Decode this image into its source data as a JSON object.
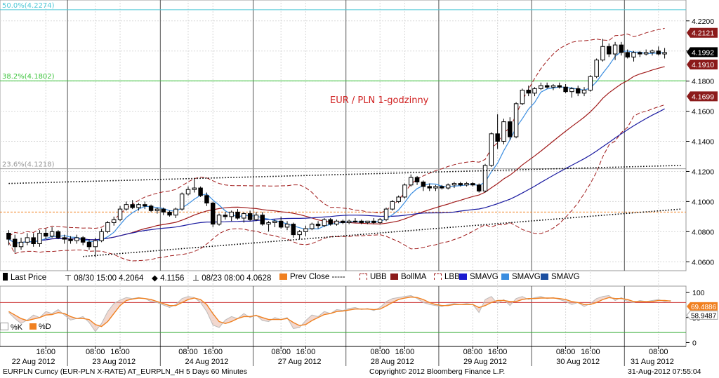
{
  "chart_data": {
    "type": "candlestick",
    "annotation_title": "EUR / PLN 1-godzinny",
    "ylim": [
      4.055,
      4.232
    ],
    "y_ticks": [
      "4.2200",
      "4.2000",
      "4.1800",
      "4.1600",
      "4.1400",
      "4.1200",
      "4.1000",
      "4.0800",
      "4.0600"
    ],
    "price_tags": [
      {
        "label": "4.2121",
        "value": 4.2121,
        "color": "#8b1a1a"
      },
      {
        "label": "4.1992",
        "value": 4.1992,
        "color": "#000000"
      },
      {
        "label": "4.1910",
        "value": 4.191,
        "color": "#8b1a1a"
      },
      {
        "label": "4.1699",
        "value": 4.1699,
        "color": "#8b1a1a"
      }
    ],
    "fib_levels": [
      {
        "label": "50.0%(4.2274)",
        "value": 4.2274,
        "color": "#4ec7d6"
      },
      {
        "label": "38.2%(4.1802)",
        "value": 4.1802,
        "color": "#3cc43c"
      },
      {
        "label": "23.6%(4.1218)",
        "value": 4.1218,
        "color": "#999999"
      }
    ],
    "prev_close": 4.093,
    "trend_lines": [
      {
        "from": [
          0,
          4.112
        ],
        "to": [
          150,
          4.124
        ]
      },
      {
        "from": [
          12,
          4.0635
        ],
        "to": [
          150,
          4.095
        ]
      }
    ],
    "candles": [
      [
        4.079,
        4.081,
        4.071,
        4.075
      ],
      [
        4.075,
        4.078,
        4.066,
        4.07
      ],
      [
        4.07,
        4.076,
        4.068,
        4.073
      ],
      [
        4.073,
        4.079,
        4.071,
        4.076
      ],
      [
        4.076,
        4.079,
        4.07,
        4.072
      ],
      [
        4.072,
        4.081,
        4.07,
        4.079
      ],
      [
        4.079,
        4.082,
        4.075,
        4.077
      ],
      [
        4.077,
        4.083,
        4.076,
        4.08
      ],
      [
        4.08,
        4.081,
        4.075,
        4.076
      ],
      [
        4.076,
        4.078,
        4.072,
        4.075
      ],
      [
        4.075,
        4.077,
        4.072,
        4.074
      ],
      [
        4.074,
        4.078,
        4.072,
        4.076
      ],
      [
        4.076,
        4.077,
        4.071,
        4.073
      ],
      [
        4.073,
        4.075,
        4.068,
        4.07
      ],
      [
        4.07,
        4.076,
        4.063,
        4.074
      ],
      [
        4.074,
        4.082,
        4.073,
        4.08
      ],
      [
        4.08,
        4.087,
        4.079,
        4.086
      ],
      [
        4.086,
        4.09,
        4.084,
        4.088
      ],
      [
        4.088,
        4.097,
        4.087,
        4.095
      ],
      [
        4.095,
        4.1,
        4.094,
        4.098
      ],
      [
        4.098,
        4.101,
        4.095,
        4.096
      ],
      [
        4.096,
        4.099,
        4.094,
        4.098
      ],
      [
        4.098,
        4.1,
        4.095,
        4.097
      ],
      [
        4.097,
        4.098,
        4.093,
        4.094
      ],
      [
        4.094,
        4.096,
        4.092,
        4.095
      ],
      [
        4.095,
        4.096,
        4.091,
        4.093
      ],
      [
        4.093,
        4.094,
        4.09,
        4.091
      ],
      [
        4.091,
        4.096,
        4.089,
        4.095
      ],
      [
        4.095,
        4.106,
        4.094,
        4.105
      ],
      [
        4.105,
        4.11,
        4.104,
        4.108
      ],
      [
        4.108,
        4.115,
        4.106,
        4.109
      ],
      [
        4.109,
        4.11,
        4.103,
        4.104
      ],
      [
        4.104,
        4.106,
        4.097,
        4.099
      ],
      [
        4.099,
        4.1,
        4.083,
        4.085
      ],
      [
        4.085,
        4.092,
        4.084,
        4.091
      ],
      [
        4.091,
        4.093,
        4.088,
        4.09
      ],
      [
        4.09,
        4.094,
        4.087,
        4.093
      ],
      [
        4.093,
        4.095,
        4.088,
        4.089
      ],
      [
        4.089,
        4.093,
        4.086,
        4.092
      ],
      [
        4.092,
        4.094,
        4.087,
        4.088
      ],
      [
        4.088,
        4.093,
        4.087,
        4.091
      ],
      [
        4.091,
        4.093,
        4.084,
        4.085
      ],
      [
        4.085,
        4.087,
        4.08,
        4.086
      ],
      [
        4.086,
        4.088,
        4.083,
        4.087
      ],
      [
        4.087,
        4.09,
        4.082,
        4.083
      ],
      [
        4.083,
        4.087,
        4.081,
        4.085
      ],
      [
        4.085,
        4.086,
        4.076,
        4.078
      ],
      [
        4.078,
        4.081,
        4.075,
        4.08
      ],
      [
        4.08,
        4.084,
        4.077,
        4.082
      ],
      [
        4.082,
        4.086,
        4.081,
        4.085
      ],
      [
        4.085,
        4.087,
        4.082,
        4.084
      ],
      [
        4.084,
        4.089,
        4.083,
        4.088
      ],
      [
        4.088,
        4.089,
        4.084,
        4.085
      ],
      [
        4.085,
        4.088,
        4.084,
        4.087
      ],
      [
        4.087,
        4.088,
        4.085,
        4.086
      ],
      [
        4.086,
        4.088,
        4.085,
        4.087
      ],
      [
        4.087,
        4.089,
        4.086,
        4.087
      ],
      [
        4.087,
        4.088,
        4.085,
        4.086
      ],
      [
        4.086,
        4.087,
        4.085,
        4.087
      ],
      [
        4.087,
        4.089,
        4.085,
        4.086
      ],
      [
        4.086,
        4.089,
        4.085,
        4.088
      ],
      [
        4.088,
        4.096,
        4.087,
        4.095
      ],
      [
        4.095,
        4.101,
        4.094,
        4.1
      ],
      [
        4.1,
        4.104,
        4.099,
        4.103
      ],
      [
        4.103,
        4.112,
        4.102,
        4.111
      ],
      [
        4.111,
        4.118,
        4.11,
        4.116
      ],
      [
        4.116,
        4.117,
        4.111,
        4.113
      ],
      [
        4.113,
        4.114,
        4.107,
        4.11
      ],
      [
        4.11,
        4.112,
        4.107,
        4.109
      ],
      [
        4.109,
        4.111,
        4.107,
        4.11
      ],
      [
        4.11,
        4.111,
        4.108,
        4.109
      ],
      [
        4.109,
        4.112,
        4.108,
        4.111
      ],
      [
        4.111,
        4.113,
        4.109,
        4.112
      ],
      [
        4.112,
        4.113,
        4.11,
        4.111
      ],
      [
        4.111,
        4.113,
        4.11,
        4.112
      ],
      [
        4.112,
        4.113,
        4.11,
        4.111
      ],
      [
        4.111,
        4.112,
        4.106,
        4.107
      ],
      [
        4.107,
        4.125,
        4.106,
        4.124
      ],
      [
        4.124,
        4.146,
        4.123,
        4.145
      ],
      [
        4.145,
        4.158,
        4.135,
        4.14
      ],
      [
        4.14,
        4.155,
        4.138,
        4.153
      ],
      [
        4.153,
        4.156,
        4.141,
        4.143
      ],
      [
        4.143,
        4.166,
        4.142,
        4.165
      ],
      [
        4.165,
        4.175,
        4.164,
        4.174
      ],
      [
        4.174,
        4.177,
        4.17,
        4.172
      ],
      [
        4.172,
        4.176,
        4.17,
        4.175
      ],
      [
        4.175,
        4.179,
        4.174,
        4.177
      ],
      [
        4.177,
        4.179,
        4.175,
        4.176
      ],
      [
        4.176,
        4.178,
        4.174,
        4.177
      ],
      [
        4.177,
        4.179,
        4.175,
        4.176
      ],
      [
        4.176,
        4.178,
        4.172,
        4.173
      ],
      [
        4.173,
        4.176,
        4.169,
        4.175
      ],
      [
        4.175,
        4.177,
        4.17,
        4.172
      ],
      [
        4.172,
        4.176,
        4.17,
        4.174
      ],
      [
        4.174,
        4.184,
        4.173,
        4.183
      ],
      [
        4.183,
        4.195,
        4.182,
        4.194
      ],
      [
        4.194,
        4.208,
        4.193,
        4.203
      ],
      [
        4.203,
        4.205,
        4.196,
        4.198
      ],
      [
        4.198,
        4.206,
        4.194,
        4.204
      ],
      [
        4.204,
        4.206,
        4.197,
        4.199
      ],
      [
        4.199,
        4.201,
        4.195,
        4.196
      ],
      [
        4.196,
        4.2,
        4.193,
        4.199
      ],
      [
        4.199,
        4.2,
        4.196,
        4.198
      ],
      [
        4.198,
        4.201,
        4.197,
        4.199
      ],
      [
        4.199,
        4.201,
        4.197,
        4.2
      ],
      [
        4.2,
        4.203,
        4.197,
        4.198
      ],
      [
        4.198,
        4.202,
        4.195,
        4.199
      ]
    ],
    "oscillator": {
      "yticks": [
        "100",
        "50",
        "0"
      ],
      "ylim": [
        -5,
        110
      ],
      "levels": [
        {
          "value": 80,
          "color": "#cc3333"
        },
        {
          "value": 20,
          "color": "#33aa33"
        }
      ],
      "tags": [
        {
          "label": "69.4886",
          "value": 69.4886,
          "color": "#f08020"
        },
        {
          "label": "58.9487",
          "value": 58.9487,
          "color": "#ffffff"
        }
      ],
      "series": [
        {
          "name": "%K",
          "color": "#bbbbbb",
          "values": [
            60,
            48,
            38,
            45,
            55,
            50,
            62,
            58,
            66,
            55,
            45,
            48,
            52,
            40,
            22,
            38,
            62,
            78,
            85,
            90,
            88,
            90,
            88,
            82,
            80,
            75,
            70,
            76,
            88,
            92,
            90,
            80,
            62,
            35,
            30,
            45,
            52,
            48,
            58,
            50,
            55,
            44,
            42,
            50,
            46,
            50,
            28,
            30,
            44,
            55,
            52,
            62,
            58,
            66,
            64,
            68,
            70,
            66,
            68,
            64,
            70,
            82,
            88,
            90,
            92,
            94,
            88,
            80,
            76,
            74,
            72,
            76,
            78,
            76,
            78,
            76,
            60,
            86,
            92,
            78,
            86,
            74,
            88,
            92,
            86,
            90,
            92,
            88,
            90,
            86,
            82,
            76,
            80,
            72,
            78,
            88,
            92,
            94,
            84,
            90,
            82,
            80,
            84,
            82,
            84,
            86,
            82,
            84
          ]
        },
        {
          "name": "%D",
          "color": "#f08020",
          "values": [
            62,
            55,
            48,
            44,
            47,
            50,
            55,
            56,
            60,
            58,
            52,
            48,
            48,
            46,
            36,
            32,
            42,
            58,
            74,
            84,
            87,
            89,
            88,
            86,
            82,
            78,
            74,
            74,
            80,
            86,
            89,
            86,
            76,
            58,
            42,
            38,
            42,
            48,
            52,
            52,
            54,
            50,
            46,
            46,
            46,
            48,
            40,
            34,
            36,
            44,
            50,
            56,
            58,
            62,
            63,
            65,
            67,
            67,
            67,
            66,
            67,
            73,
            80,
            86,
            89,
            91,
            90,
            86,
            80,
            76,
            74,
            74,
            76,
            76,
            76,
            76,
            70,
            74,
            80,
            84,
            84,
            82,
            82,
            86,
            88,
            88,
            89,
            89,
            89,
            88,
            86,
            82,
            80,
            76,
            76,
            80,
            86,
            90,
            88,
            88,
            86,
            82,
            82,
            82,
            82,
            84,
            84,
            83
          ]
        }
      ]
    },
    "x_time_labels": [
      {
        "label": "16:00",
        "bar": 6
      },
      {
        "label": "08:00",
        "bar": 14
      },
      {
        "label": "16:00",
        "bar": 18
      },
      {
        "label": "08:00",
        "bar": 29
      },
      {
        "label": "16:00",
        "bar": 33
      },
      {
        "label": "08:00",
        "bar": 44
      },
      {
        "label": "16:00",
        "bar": 48
      },
      {
        "label": "08:00",
        "bar": 60
      },
      {
        "label": "16:00",
        "bar": 64
      },
      {
        "label": "08:00",
        "bar": 75
      },
      {
        "label": "16:00",
        "bar": 79
      },
      {
        "label": "08:00",
        "bar": 90
      },
      {
        "label": "16:00",
        "bar": 94
      },
      {
        "label": "08:00",
        "bar": 105
      }
    ],
    "x_date_labels": [
      {
        "label": "22 Aug 2012",
        "bar": 4
      },
      {
        "label": "23 Aug 2012",
        "bar": 17
      },
      {
        "label": "24 Aug 2012",
        "bar": 32
      },
      {
        "label": "27 Aug 2012",
        "bar": 47
      },
      {
        "label": "28 Aug 2012",
        "bar": 62
      },
      {
        "label": "29 Aug 2012",
        "bar": 77
      },
      {
        "label": "30 Aug 2012",
        "bar": 92
      },
      {
        "label": "31 Aug 2012",
        "bar": 104
      }
    ],
    "separators": [
      10,
      25,
      40,
      55,
      70,
      85,
      100
    ]
  },
  "legend": {
    "last_price": "Last Price",
    "high": "08/30 15:00 4.2064",
    "mid": "4.1156",
    "low": "08/23 08:00 4.0628",
    "prev_close": "Prev Close",
    "ubb": "UBB",
    "bollma": "BollMA",
    "lbb": "LBB",
    "smavg1": "SMAVG",
    "smavg2": "SMAVG",
    "smavg3": "SMAVG"
  },
  "osc_legend": {
    "k": "%K",
    "d": "%D"
  },
  "footer": {
    "left": "EURPLN Curncy (EUR-PLN X-RATE) AT_EURPLN_4H 5 Days 60 Minutes",
    "center": "Copyright© 2012 Bloomberg Finance L.P.",
    "right": "31-Aug-2012 07:55:04"
  },
  "colors": {
    "bb_band": "#a01a1a",
    "bb_mid": "#a01a1a",
    "sma_fast": "#3a8de0",
    "sma_slow": "#1a1aa0",
    "prev_close": "#f08020",
    "trend": "#000000"
  }
}
